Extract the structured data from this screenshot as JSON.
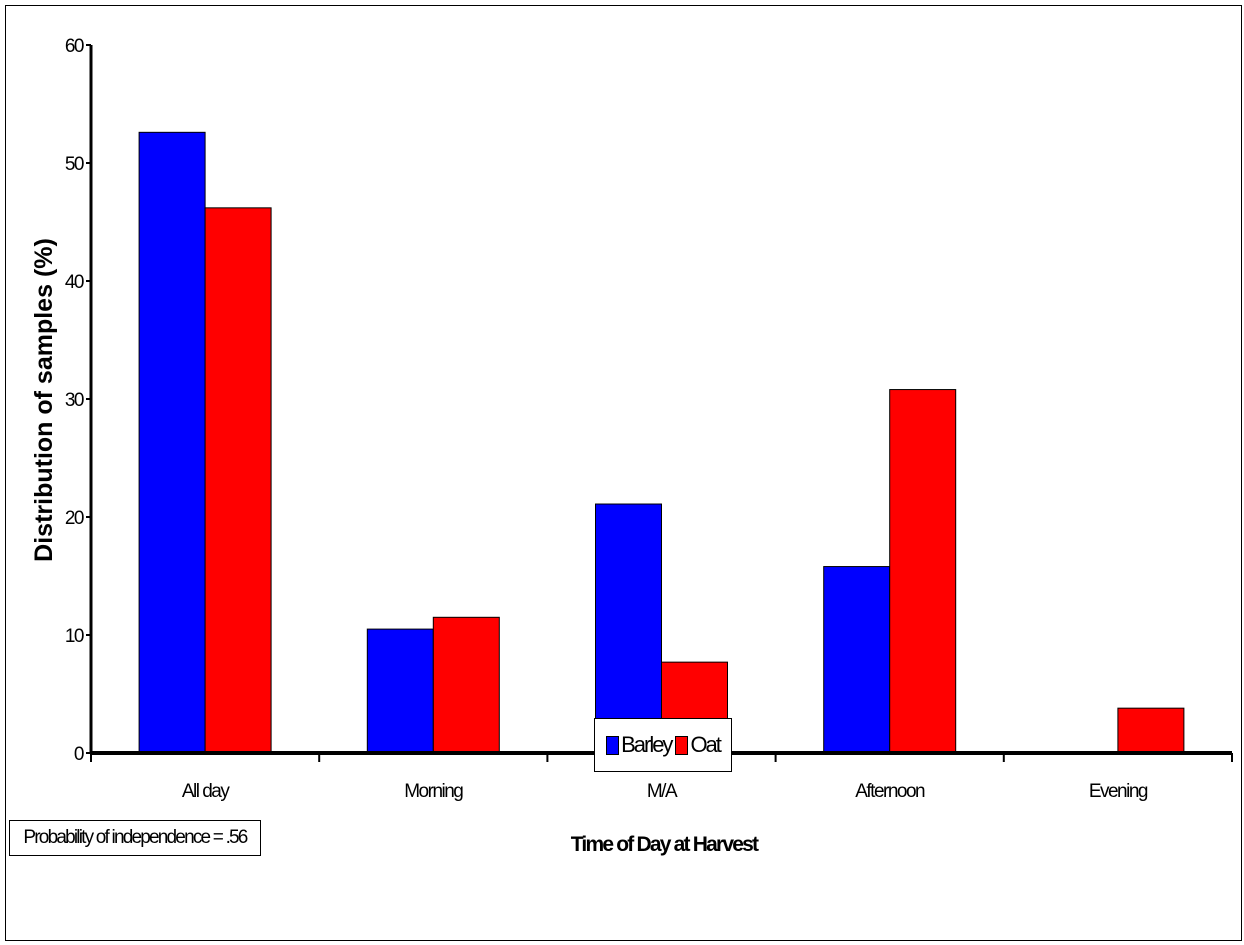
{
  "chart_data": {
    "type": "bar",
    "title": "",
    "xlabel": "Time of Day at Harvest",
    "ylabel": "Distribution of samples (%)",
    "categories": [
      "All day",
      "Morning",
      "M/A",
      "Afternoon",
      "Evening"
    ],
    "ylim": [
      0,
      60
    ],
    "yticks": [
      0,
      10,
      20,
      30,
      40,
      50,
      60
    ],
    "series": [
      {
        "name": "Barley",
        "color": "#0000ff",
        "values": [
          52.6,
          10.5,
          21.1,
          15.8,
          0
        ]
      },
      {
        "name": "Oat",
        "color": "#ff0000",
        "values": [
          46.2,
          11.5,
          7.7,
          30.8,
          3.8
        ]
      }
    ],
    "grid": false,
    "legend_position": "bottom-center"
  },
  "annotation": "Probability of independence = .56"
}
